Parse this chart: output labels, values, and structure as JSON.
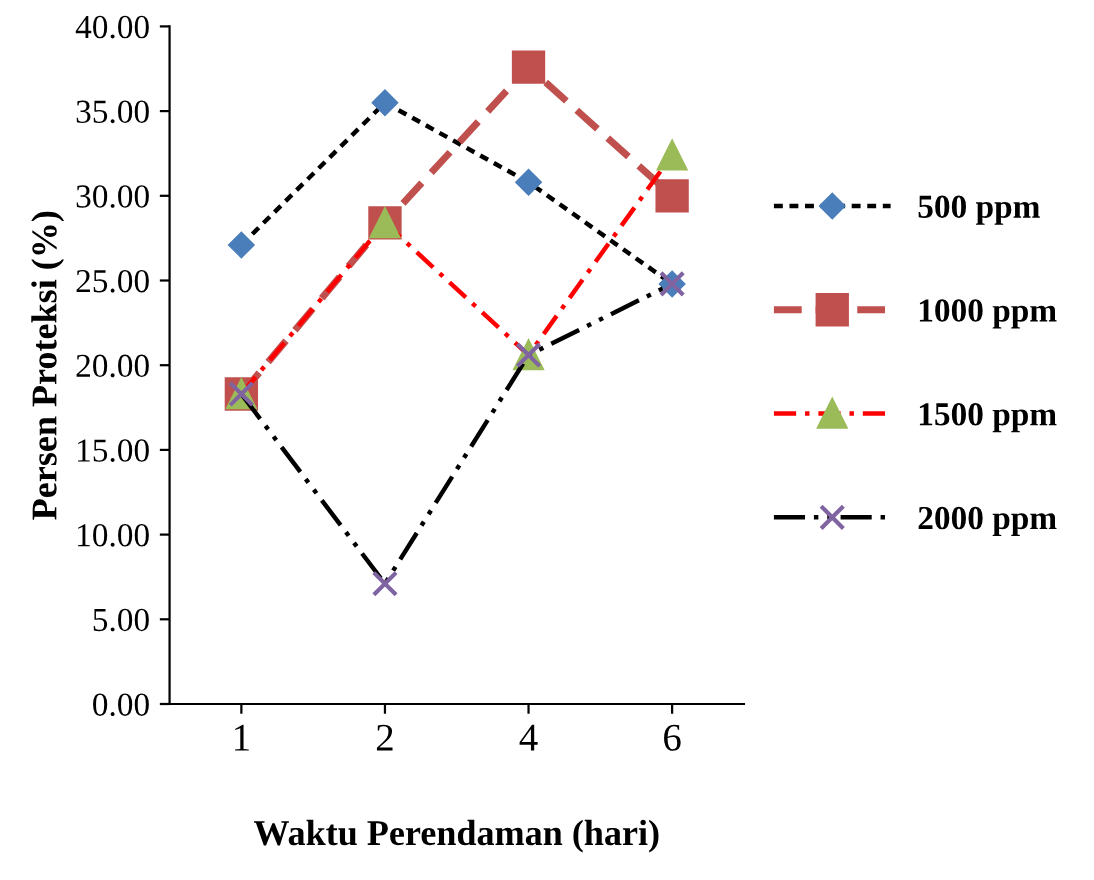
{
  "chart_data": {
    "type": "line",
    "xlabel": "Waktu Perendaman (hari)",
    "ylabel": "Persen Proteksi (%)",
    "categories": [
      "1",
      "2",
      "4",
      "6"
    ],
    "ylim": [
      0,
      40
    ],
    "yticks": [
      {
        "value": 0,
        "label": "0.00"
      },
      {
        "value": 5,
        "label": "5.00"
      },
      {
        "value": 10,
        "label": "10.00"
      },
      {
        "value": 15,
        "label": "15.00"
      },
      {
        "value": 20,
        "label": "20.00"
      },
      {
        "value": 25,
        "label": "25.00"
      },
      {
        "value": 30,
        "label": "30.00"
      },
      {
        "value": 35,
        "label": "35.00"
      },
      {
        "value": 40,
        "label": "40.00"
      }
    ],
    "grid": false,
    "legend": "right",
    "series": [
      {
        "name": "500 ppm",
        "color": "#000000",
        "colors": [
          "#4a7ebb",
          "#4a7ebb",
          "#4a7ebb",
          "#4a7ebb"
        ],
        "marker": "diamond",
        "line_style": "dotted",
        "values": [
          27.1,
          35.5,
          30.8,
          24.8
        ]
      },
      {
        "name": "1000 ppm",
        "color": "#c0504d",
        "colors": [
          "#c0504d",
          "#c0504d",
          "#c0504d",
          "#c0504d"
        ],
        "marker": "square",
        "line_style": "dashed",
        "values": [
          18.3,
          28.4,
          37.6,
          30.0
        ]
      },
      {
        "name": "1500 ppm",
        "color": "#ff0000",
        "colors": [
          "#9bbb59",
          "#9bbb59",
          "#9bbb59",
          "#9bbb59"
        ],
        "marker": "triangle",
        "line_style": "dashdot",
        "values": [
          18.3,
          28.4,
          20.6,
          32.4
        ]
      },
      {
        "name": "2000 ppm",
        "color": "#000000",
        "colors": [
          "#8064a2",
          "#8064a2",
          "#8064a2",
          "#8064a2"
        ],
        "marker": "cross",
        "line_style": "dashdotdot",
        "values": [
          18.3,
          7.1,
          20.6,
          24.8
        ]
      }
    ]
  }
}
